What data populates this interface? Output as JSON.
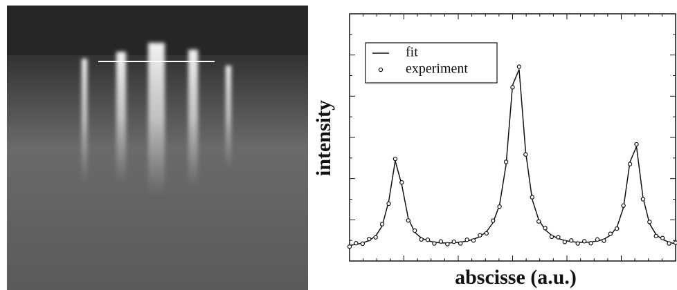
{
  "chart_data": {
    "type": "line",
    "xlabel": "abscisse (a.u.)",
    "ylabel": "intensity",
    "xlim": [
      0,
      100
    ],
    "ylim": [
      0,
      100
    ],
    "x": [
      0,
      2,
      4,
      6,
      8,
      10,
      12,
      14,
      16,
      18,
      20,
      22,
      24,
      26,
      28,
      30,
      32,
      34,
      36,
      38,
      40,
      42,
      44,
      46,
      48,
      50,
      52,
      54,
      56,
      58,
      60,
      62,
      64,
      66,
      68,
      70,
      72,
      74,
      76,
      78,
      80,
      82,
      84,
      86,
      88,
      90,
      92,
      94,
      96,
      98,
      100
    ],
    "series": [
      {
        "name": "fit",
        "color": "#111111",
        "style": "line",
        "values": [
          6.3,
          6.7,
          7.3,
          8.3,
          10.1,
          14.2,
          24.1,
          40.5,
          30.9,
          17.2,
          11.6,
          9.3,
          8.2,
          7.6,
          7.3,
          7.3,
          7.4,
          7.6,
          8.1,
          8.8,
          9.9,
          11.9,
          15.5,
          22.7,
          39,
          71.2,
          77.5,
          44.2,
          25,
          16.7,
          12.6,
          10.4,
          9.1,
          8.3,
          7.8,
          7.6,
          7.5,
          7.7,
          8.1,
          8.8,
          10.4,
          13.7,
          21.6,
          40.1,
          46.3,
          25.7,
          15.1,
          10.7,
          8.7,
          7.6,
          6.9
        ]
      },
      {
        "name": "experiment",
        "color": "#111111",
        "style": "circle",
        "values": [
          5.8,
          7.2,
          7.0,
          8.9,
          9.6,
          14.9,
          23.2,
          41.3,
          31.8,
          16.4,
          12.3,
          8.7,
          8.6,
          7.1,
          7.9,
          6.8,
          7.8,
          7.1,
          8.6,
          8.3,
          10.4,
          11.2,
          16.3,
          22.0,
          40.1,
          70.3,
          78.6,
          43.1,
          25.8,
          16.0,
          13.3,
          9.8,
          9.6,
          7.7,
          8.3,
          7.1,
          8.0,
          7.2,
          8.7,
          8.2,
          11.0,
          13.1,
          22.4,
          39.2,
          47.2,
          25.0,
          15.8,
          10.1,
          9.3,
          7.1,
          7.4
        ]
      }
    ],
    "legend": "upper-left"
  }
}
